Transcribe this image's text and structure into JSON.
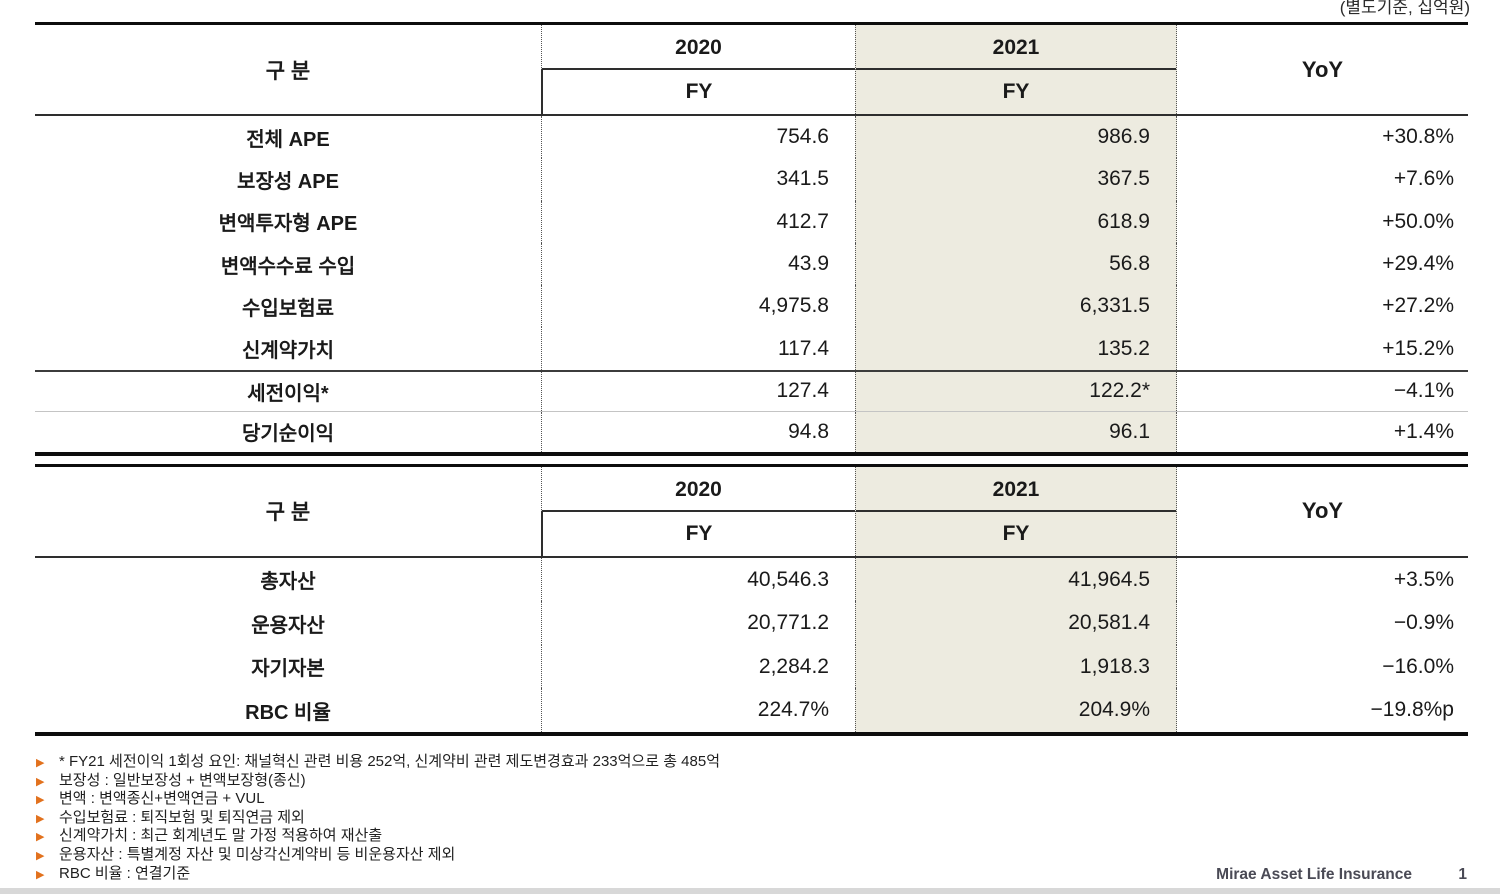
{
  "page": {
    "unit_note": "(별도기준, 십억원)",
    "footer_company": "Mirae Asset Life Insurance",
    "footer_page": "1"
  },
  "colors": {
    "highlight_column": "#edebe0",
    "bullet_orange": "#e2711d",
    "footer_text": "#4a4a55"
  },
  "table1": {
    "group_label": "구 분",
    "year_2020": "2020",
    "year_2021": "2021",
    "fy_2020": "FY",
    "fy_2021": "FY",
    "yoy_label": "YoY",
    "rows": [
      {
        "label": "전체 APE",
        "fy2020": "754.6",
        "fy2021": "986.9",
        "yoy": "+30.8%"
      },
      {
        "label": "보장성 APE",
        "fy2020": "341.5",
        "fy2021": "367.5",
        "yoy": "+7.6%"
      },
      {
        "label": "변액투자형 APE",
        "fy2020": "412.7",
        "fy2021": "618.9",
        "yoy": "+50.0%"
      },
      {
        "label": "변액수수료 수입",
        "fy2020": "43.9",
        "fy2021": "56.8",
        "yoy": "+29.4%"
      },
      {
        "label": "수입보험료",
        "fy2020": "4,975.8",
        "fy2021": "6,331.5",
        "yoy": "+27.2%"
      },
      {
        "label": "신계약가치",
        "fy2020": "117.4",
        "fy2021": "135.2",
        "yoy": "+15.2%"
      },
      {
        "label": "세전이익*",
        "fy2020": "127.4",
        "fy2021": "122.2*",
        "yoy": "−4.1%"
      },
      {
        "label": "당기순이익",
        "fy2020": "94.8",
        "fy2021": "96.1",
        "yoy": "+1.4%"
      }
    ]
  },
  "table2": {
    "group_label": "구 분",
    "year_2020": "2020",
    "year_2021": "2021",
    "fy_2020": "FY",
    "fy_2021": "FY",
    "yoy_label": "YoY",
    "rows": [
      {
        "label": "총자산",
        "fy2020": "40,546.3",
        "fy2021": "41,964.5",
        "yoy": "+3.5%"
      },
      {
        "label": "운용자산",
        "fy2020": "20,771.2",
        "fy2021": "20,581.4",
        "yoy": "−0.9%"
      },
      {
        "label": "자기자본",
        "fy2020": "2,284.2",
        "fy2021": "1,918.3",
        "yoy": "−16.0%"
      },
      {
        "label": "RBC 비율",
        "fy2020": "224.7%",
        "fy2021": "204.9%",
        "yoy": "−19.8%p"
      }
    ]
  },
  "footnotes": [
    {
      "text": "* FY21 세전이익 1회성 요인: 채널혁신 관련 비용 252억, 신계약비 관련 제도변경효과 233억으로 총 485억"
    },
    {
      "text": "보장성 : 일반보장성 + 변액보장형(종신)"
    },
    {
      "text": "변액 : 변액종신+변액연금 + VUL"
    },
    {
      "text": "수입보험료 : 퇴직보험 및 퇴직연금 제외"
    },
    {
      "text": "신계약가치 : 최근 회계년도 말 가정 적용하여 재산출"
    },
    {
      "text": "운용자산 : 특별계정 자산 및 미상각신계약비 등 비운용자산 제외"
    },
    {
      "text": "RBC 비율 : 연결기준"
    }
  ]
}
